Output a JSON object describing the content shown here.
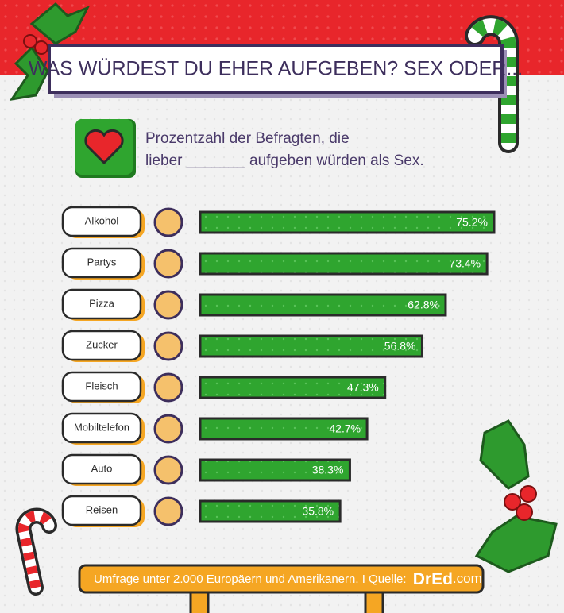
{
  "chart_data": {
    "type": "bar",
    "title": "WAS WÜRDEST DU EHER AUFGEBEN? SEX ODER...",
    "subtitle_lines": [
      "Prozentzahl der Befragten, die",
      "lieber _______ aufgeben würden als Sex."
    ],
    "categories": [
      "Alkohol",
      "Partys",
      "Pizza",
      "Zucker",
      "Fleisch",
      "Mobiltelefon",
      "Auto",
      "Reisen"
    ],
    "values": [
      75.2,
      73.4,
      62.8,
      56.8,
      47.3,
      42.7,
      38.3,
      35.8
    ],
    "value_labels": [
      "75.2%",
      "73.4%",
      "62.8%",
      "56.8%",
      "47.3%",
      "42.7%",
      "38.3%",
      "35.8%"
    ],
    "color": "#2fa52f",
    "footer": {
      "text": "Umfrage unter 2.000 Europäern und Amerikanern. I Quelle:",
      "brand": "DrEd",
      "brand_suffix": ".com"
    }
  }
}
